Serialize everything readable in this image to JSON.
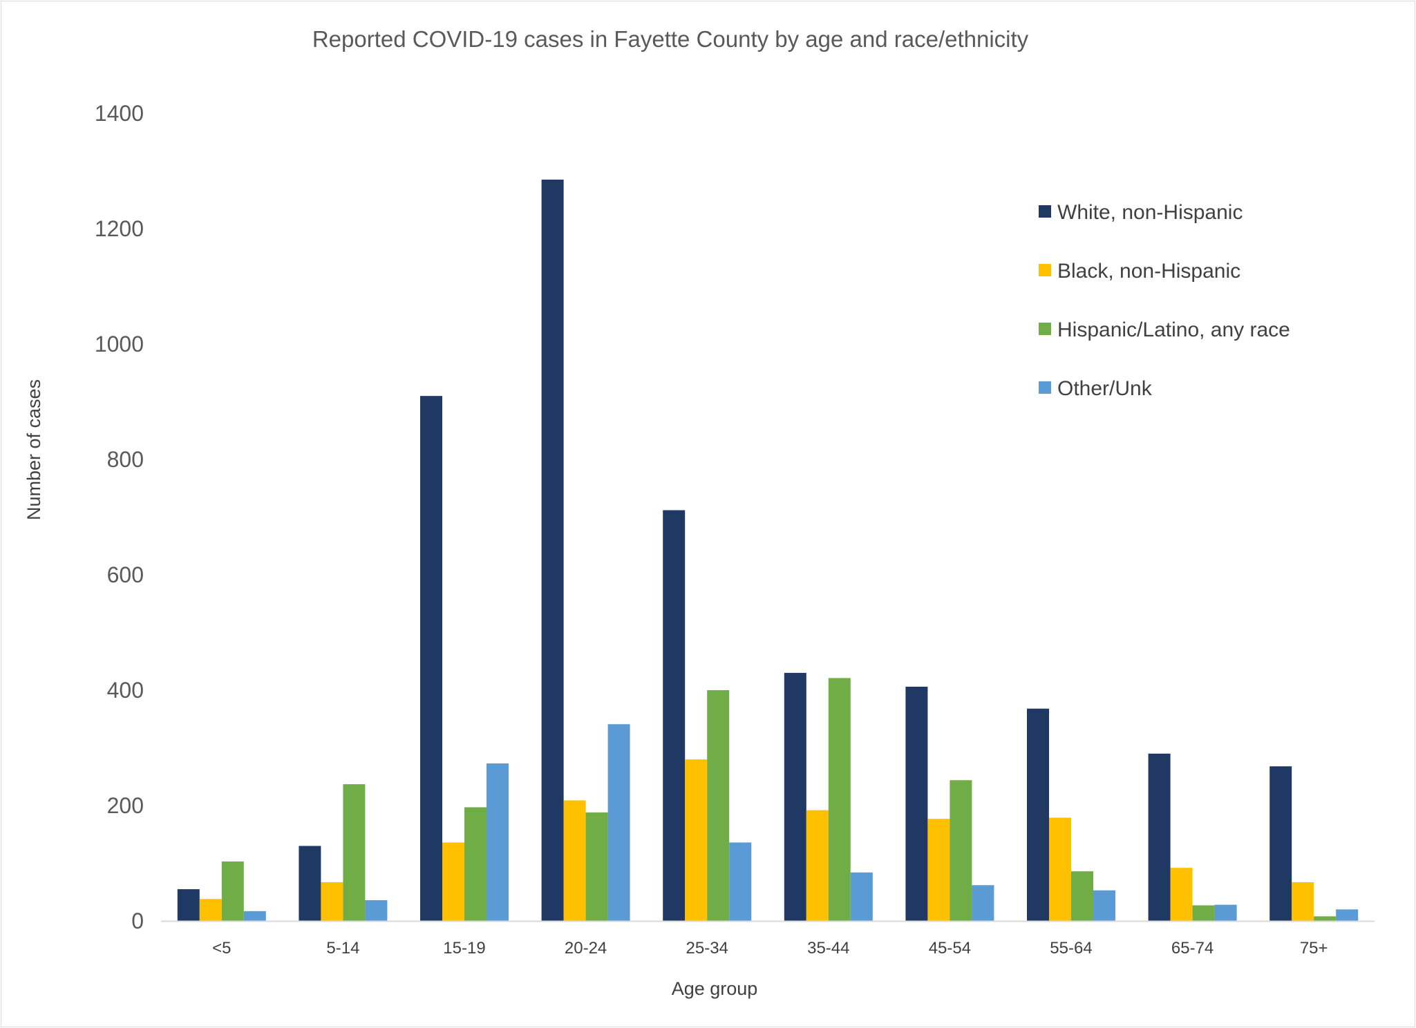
{
  "chart_data": {
    "type": "bar",
    "title": "Reported COVID-19 cases in Fayette County by age and race/ethnicity",
    "xlabel": "Age group",
    "ylabel": "Number of cases",
    "ylim": [
      0,
      1400
    ],
    "yticks": [
      0,
      200,
      400,
      600,
      800,
      1000,
      1200,
      1400
    ],
    "grid": false,
    "legend_position": "top-right",
    "categories": [
      "<5",
      "5-14",
      "15-19",
      "20-24",
      "25-34",
      "35-44",
      "45-54",
      "55-64",
      "65-74",
      "75+"
    ],
    "series": [
      {
        "name": "White, non-Hispanic",
        "color": "#203864",
        "values": [
          55,
          130,
          910,
          1285,
          712,
          430,
          406,
          368,
          290,
          268
        ]
      },
      {
        "name": "Black, non-Hispanic",
        "color": "#ffc000",
        "values": [
          38,
          67,
          136,
          209,
          280,
          192,
          177,
          179,
          92,
          67
        ]
      },
      {
        "name": "Hispanic/Latino, any race",
        "color": "#70ad47",
        "values": [
          103,
          237,
          197,
          188,
          400,
          421,
          244,
          86,
          27,
          8
        ]
      },
      {
        "name": "Other/Unk",
        "color": "#5b9bd5",
        "values": [
          17,
          36,
          273,
          341,
          136,
          84,
          62,
          53,
          28,
          20
        ]
      }
    ]
  }
}
